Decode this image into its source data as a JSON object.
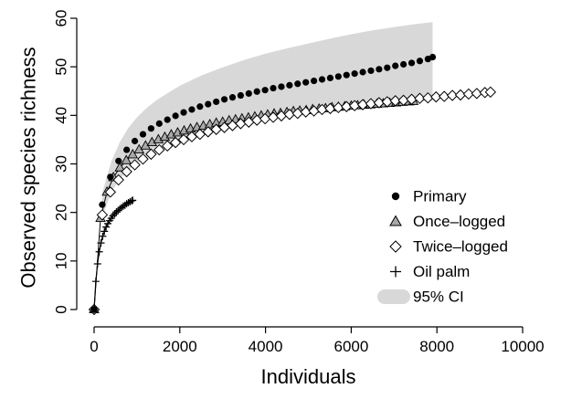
{
  "chart_data": {
    "type": "scatter",
    "title": "",
    "xlabel": "Individuals",
    "ylabel": "Observed species richness",
    "xlim": [
      0,
      10000
    ],
    "ylim": [
      0,
      60
    ],
    "x_ticks": [
      0,
      2000,
      4000,
      6000,
      8000,
      10000
    ],
    "y_ticks": [
      0,
      10,
      20,
      30,
      40,
      50,
      60
    ],
    "grid": false,
    "legend_position": "right",
    "legend": [
      {
        "label": "Primary",
        "marker": "filled-circle"
      },
      {
        "label": "Once–logged",
        "marker": "gray-triangle"
      },
      {
        "label": "Twice–logged",
        "marker": "open-diamond"
      },
      {
        "label": "Oil palm",
        "marker": "plus"
      },
      {
        "label": "95% CI",
        "marker": "gray-band"
      }
    ],
    "colors": {
      "primary": "#000000",
      "once_logged_fill": "#a8a8a8",
      "twice_logged_fill": "#ffffff",
      "ci_band": "#d8d8d8"
    },
    "series": [
      {
        "name": "Primary",
        "x": [
          0,
          190,
          380,
          570,
          760,
          950,
          1140,
          1330,
          1520,
          1710,
          1900,
          2090,
          2280,
          2470,
          2660,
          2850,
          3040,
          3230,
          3420,
          3610,
          3800,
          3990,
          4180,
          4370,
          4560,
          4750,
          4940,
          5130,
          5320,
          5510,
          5700,
          5890,
          6080,
          6270,
          6460,
          6650,
          6840,
          7030,
          7220,
          7410,
          7600,
          7790,
          7900
        ],
        "y": [
          0,
          21.6,
          27.3,
          30.6,
          32.9,
          34.7,
          36.1,
          37.3,
          38.3,
          39.1,
          39.9,
          40.6,
          41.2,
          41.8,
          42.3,
          42.8,
          43.3,
          43.7,
          44.1,
          44.5,
          44.9,
          45.2,
          45.6,
          45.9,
          46.2,
          46.5,
          46.8,
          47.1,
          47.4,
          47.7,
          48.0,
          48.3,
          48.6,
          48.9,
          49.2,
          49.5,
          49.8,
          50.2,
          50.5,
          50.8,
          51.2,
          51.6,
          52.0
        ]
      },
      {
        "name": "Once–logged",
        "x": [
          0,
          150,
          300,
          450,
          600,
          750,
          900,
          1050,
          1200,
          1350,
          1500,
          1650,
          1800,
          1950,
          2100,
          2250,
          2400,
          2550,
          2700,
          2850,
          3000,
          3150,
          3300,
          3450,
          3600,
          3750,
          3900,
          4050,
          4200,
          4350,
          4500,
          4650,
          4800,
          4950,
          5100,
          5250,
          5400,
          5550,
          5700,
          5850,
          6000,
          6150,
          6300,
          6450,
          6600,
          6750,
          6900,
          7050,
          7200,
          7350,
          7450
        ],
        "y": [
          0,
          18.8,
          24.2,
          27.2,
          29.2,
          30.7,
          31.9,
          32.9,
          33.7,
          34.4,
          35.0,
          35.5,
          36.0,
          36.4,
          36.8,
          37.2,
          37.5,
          37.8,
          38.1,
          38.4,
          38.6,
          38.9,
          39.1,
          39.3,
          39.5,
          39.7,
          39.9,
          40.1,
          40.3,
          40.4,
          40.6,
          40.8,
          40.9,
          41.0,
          41.2,
          41.3,
          41.4,
          41.6,
          41.7,
          41.8,
          41.9,
          42.0,
          42.1,
          42.2,
          42.3,
          42.4,
          42.5,
          42.6,
          42.7,
          42.8,
          42.9
        ]
      },
      {
        "name": "Twice–logged",
        "x": [
          0,
          190,
          380,
          570,
          760,
          950,
          1140,
          1330,
          1520,
          1710,
          1900,
          2090,
          2280,
          2470,
          2660,
          2850,
          3040,
          3230,
          3420,
          3610,
          3800,
          3990,
          4180,
          4370,
          4560,
          4750,
          4940,
          5130,
          5320,
          5510,
          5700,
          5890,
          6080,
          6270,
          6460,
          6650,
          6840,
          7030,
          7220,
          7410,
          7600,
          7790,
          7980,
          8170,
          8360,
          8550,
          8740,
          8930,
          9120,
          9250
        ],
        "y": [
          0,
          19.5,
          24.2,
          26.7,
          28.4,
          29.8,
          31.0,
          32.0,
          32.9,
          33.7,
          34.4,
          35.0,
          35.6,
          36.1,
          36.6,
          37.1,
          37.5,
          37.9,
          38.3,
          38.6,
          39.0,
          39.3,
          39.6,
          39.9,
          40.2,
          40.4,
          40.7,
          40.9,
          41.2,
          41.4,
          41.6,
          41.8,
          42.0,
          42.2,
          42.4,
          42.6,
          42.8,
          43.0,
          43.1,
          43.3,
          43.5,
          43.6,
          43.8,
          43.9,
          44.1,
          44.2,
          44.4,
          44.5,
          44.7,
          44.8
        ]
      },
      {
        "name": "Oil palm",
        "x": [
          0,
          40,
          80,
          120,
          160,
          200,
          240,
          280,
          320,
          360,
          400,
          440,
          480,
          520,
          560,
          600,
          640,
          680,
          720,
          760,
          800,
          840,
          880,
          900
        ],
        "y": [
          0,
          5.8,
          9.4,
          11.9,
          13.7,
          15.1,
          16.1,
          17.0,
          17.7,
          18.3,
          18.8,
          19.3,
          19.7,
          20.1,
          20.4,
          20.7,
          21.0,
          21.3,
          21.5,
          21.8,
          22.0,
          22.2,
          22.4,
          22.5
        ]
      }
    ],
    "ci_band": {
      "name": "95% CI",
      "x": [
        190,
        400,
        600,
        800,
        1000,
        1250,
        1500,
        2000,
        2500,
        3000,
        3500,
        4000,
        4500,
        5000,
        5500,
        6000,
        6500,
        7000,
        7500,
        7900
      ],
      "lower": [
        19.0,
        24.2,
        26.9,
        28.7,
        30.1,
        31.5,
        32.7,
        34.6,
        36.1,
        37.4,
        38.4,
        39.3,
        40.1,
        40.8,
        41.3,
        41.8,
        42.2,
        42.5,
        42.8,
        43.0
      ],
      "upper": [
        24.0,
        30.5,
        34.5,
        37.4,
        39.6,
        41.7,
        43.4,
        46.1,
        48.2,
        49.9,
        51.4,
        52.7,
        53.8,
        54.8,
        55.8,
        56.7,
        57.5,
        58.2,
        58.8,
        59.2
      ]
    }
  }
}
